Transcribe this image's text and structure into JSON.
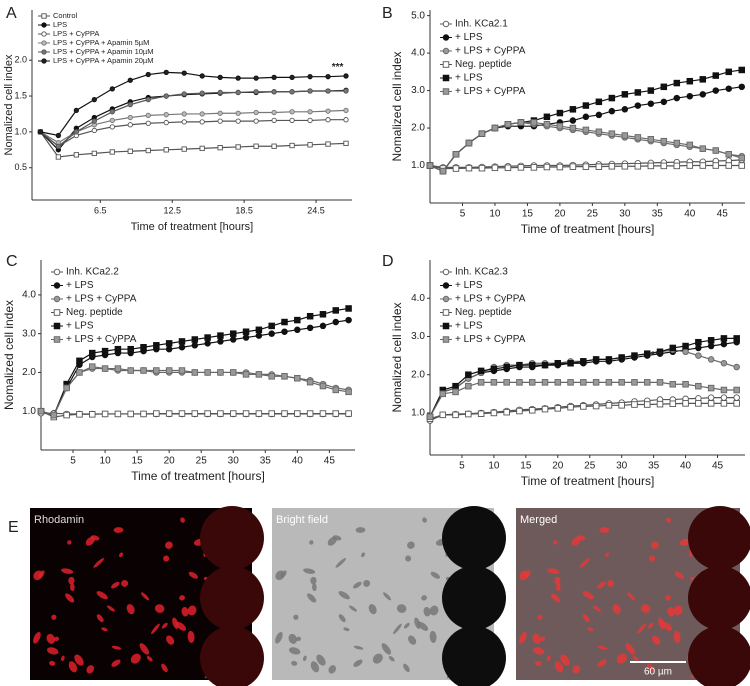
{
  "chart_data": [
    {
      "type": "line",
      "panel": "A",
      "ylabel": "Nomalized cell index",
      "xlabel": "Time of treatment [hours]",
      "x": [
        1.5,
        3,
        4.5,
        6,
        7.5,
        9,
        10.5,
        12,
        13.5,
        15,
        16.5,
        18,
        19.5,
        21,
        22.5,
        24,
        25.5,
        27
      ],
      "xlim": [
        0.8,
        27.5
      ],
      "xticks": [
        6.5,
        12.5,
        18.5,
        24.5
      ],
      "ylim": [
        0.05,
        2.7
      ],
      "yticks": [
        0.5,
        {
          "value": 1,
          "label": "1.0"
        },
        1.5,
        {
          "value": 2,
          "label": "2.0"
        }
      ],
      "series": [
        {
          "name": "Control",
          "color": "#555555",
          "fill": "#ffffff",
          "marker": "square",
          "values": [
            1.0,
            0.65,
            0.68,
            0.7,
            0.72,
            0.73,
            0.74,
            0.75,
            0.76,
            0.77,
            0.78,
            0.79,
            0.8,
            0.8,
            0.81,
            0.82,
            0.83,
            0.84
          ]
        },
        {
          "name": "LPS",
          "color": "#111111",
          "fill": "#111111",
          "marker": "circle",
          "values": [
            1.0,
            0.75,
            1.05,
            1.2,
            1.32,
            1.42,
            1.48,
            1.5,
            1.52,
            1.53,
            1.54,
            1.55,
            1.55,
            1.56,
            1.56,
            1.57,
            1.57,
            1.58
          ]
        },
        {
          "name": "LPS + CyPPA",
          "color": "#555555",
          "fill": "#ffffff",
          "marker": "circle",
          "values": [
            1.0,
            0.8,
            0.95,
            1.02,
            1.07,
            1.1,
            1.12,
            1.13,
            1.14,
            1.14,
            1.15,
            1.15,
            1.15,
            1.16,
            1.16,
            1.16,
            1.17,
            1.17
          ]
        },
        {
          "name": "LPS + CyPPA + Apamin 5µM",
          "color": "#777777",
          "fill": "#bbbbbb",
          "marker": "circle",
          "values": [
            1.0,
            0.85,
            1.0,
            1.1,
            1.16,
            1.2,
            1.23,
            1.24,
            1.25,
            1.25,
            1.26,
            1.26,
            1.27,
            1.27,
            1.28,
            1.28,
            1.29,
            1.3
          ]
        },
        {
          "name": "LPS + CyPPA + Apamin 10µM",
          "color": "#555555",
          "fill": "#777777",
          "marker": "circle",
          "values": [
            1.0,
            0.8,
            1.0,
            1.15,
            1.28,
            1.38,
            1.45,
            1.5,
            1.53,
            1.54,
            1.55,
            1.55,
            1.56,
            1.56,
            1.56,
            1.57,
            1.57,
            1.57
          ]
        },
        {
          "name": "LPS + CyPPA + Apamin 20µM",
          "color": "#111111",
          "fill": "#222222",
          "marker": "circle",
          "values": [
            1.0,
            0.95,
            1.3,
            1.45,
            1.6,
            1.72,
            1.8,
            1.83,
            1.82,
            1.78,
            1.76,
            1.75,
            1.75,
            1.76,
            1.76,
            1.77,
            1.77,
            1.78
          ]
        }
      ],
      "annotations": [
        {
          "text": "***",
          "x": 26.3,
          "y": 1.9
        }
      ]
    },
    {
      "type": "line",
      "panel": "B",
      "ylabel": "Nomalized cell index",
      "xlabel": "Time of treatment [hours]",
      "x": [
        0,
        2,
        4,
        6,
        8,
        10,
        12,
        14,
        16,
        18,
        20,
        22,
        24,
        26,
        28,
        30,
        32,
        34,
        36,
        38,
        40,
        42,
        44,
        46,
        48
      ],
      "xlim": [
        0,
        48.5
      ],
      "xticks": [
        5,
        10,
        15,
        20,
        25,
        30,
        35,
        40,
        45
      ],
      "ylim": [
        0,
        5.15
      ],
      "yticks": [
        {
          "value": 1,
          "label": "1.0"
        },
        {
          "value": 2,
          "label": "2.0"
        },
        {
          "value": 3,
          "label": "3.0"
        },
        {
          "value": 4,
          "label": "4.0"
        },
        {
          "value": 5,
          "label": "5.0"
        }
      ],
      "series": [
        {
          "name": "Inh. KCa2.1",
          "color": "#555555",
          "fill": "#ffffff",
          "marker": "circle",
          "values": [
            1.0,
            0.95,
            0.95,
            0.95,
            0.96,
            0.97,
            0.98,
            0.99,
            1.0,
            1.0,
            1.0,
            1.01,
            1.02,
            1.03,
            1.04,
            1.05,
            1.06,
            1.07,
            1.08,
            1.09,
            1.1,
            1.1,
            1.12,
            1.13,
            1.15
          ]
        },
        {
          "name": "+ LPS",
          "color": "#111111",
          "fill": "#111111",
          "marker": "circle",
          "values": [
            1.0,
            0.85,
            1.3,
            1.6,
            1.85,
            2.0,
            2.05,
            2.05,
            2.05,
            2.1,
            2.15,
            2.2,
            2.3,
            2.35,
            2.45,
            2.5,
            2.6,
            2.65,
            2.7,
            2.8,
            2.85,
            2.9,
            3.0,
            3.05,
            3.1
          ]
        },
        {
          "name": "+ LPS + CyPPA",
          "color": "#666666",
          "fill": "#999999",
          "marker": "circle",
          "values": [
            1.0,
            0.85,
            1.3,
            1.6,
            1.85,
            2.0,
            2.1,
            2.15,
            2.1,
            2.05,
            2.0,
            1.95,
            1.9,
            1.85,
            1.8,
            1.75,
            1.7,
            1.65,
            1.6,
            1.55,
            1.5,
            1.45,
            1.4,
            1.3,
            1.25
          ]
        },
        {
          "name": "Neg. peptide",
          "color": "#555555",
          "fill": "#ffffff",
          "marker": "square",
          "values": [
            1.0,
            0.92,
            0.92,
            0.93,
            0.93,
            0.94,
            0.94,
            0.95,
            0.95,
            0.96,
            0.96,
            0.97,
            0.97,
            0.97,
            0.98,
            0.98,
            0.98,
            0.99,
            0.99,
            0.99,
            1.0,
            1.0,
            1.0,
            1.0,
            1.0
          ]
        },
        {
          "name": "+ LPS",
          "color": "#111111",
          "fill": "#111111",
          "marker": "square",
          "values": [
            1.0,
            0.85,
            1.3,
            1.6,
            1.85,
            2.0,
            2.1,
            2.15,
            2.2,
            2.3,
            2.4,
            2.5,
            2.6,
            2.7,
            2.8,
            2.9,
            2.95,
            3.0,
            3.1,
            3.2,
            3.25,
            3.3,
            3.4,
            3.5,
            3.55
          ]
        },
        {
          "name": "+ LPS + CyPPA",
          "color": "#666666",
          "fill": "#999999",
          "marker": "square",
          "values": [
            1.0,
            0.85,
            1.3,
            1.6,
            1.85,
            2.0,
            2.1,
            2.15,
            2.15,
            2.1,
            2.05,
            2.0,
            1.95,
            1.9,
            1.85,
            1.8,
            1.75,
            1.7,
            1.65,
            1.6,
            1.55,
            1.45,
            1.4,
            1.3,
            1.2
          ]
        }
      ]
    },
    {
      "type": "line",
      "panel": "C",
      "ylabel": "Nomalized cell index",
      "xlabel": "Time of treatment [hours]",
      "x": [
        0,
        2,
        4,
        6,
        8,
        10,
        12,
        14,
        16,
        18,
        20,
        22,
        24,
        26,
        28,
        30,
        32,
        34,
        36,
        38,
        40,
        42,
        44,
        46,
        48
      ],
      "xlim": [
        0,
        49
      ],
      "xticks": [
        5,
        10,
        15,
        20,
        25,
        30,
        35,
        40,
        45
      ],
      "ylim": [
        0,
        4.9
      ],
      "yticks": [
        {
          "value": 1,
          "label": "1.0"
        },
        {
          "value": 2,
          "label": "2.0"
        },
        {
          "value": 3,
          "label": "3.0"
        },
        {
          "value": 4,
          "label": "4.0"
        }
      ],
      "series": [
        {
          "name": "Inh. KCa2.2",
          "color": "#555555",
          "fill": "#ffffff",
          "marker": "circle",
          "values": [
            0.95,
            0.95,
            0.93,
            0.93,
            0.93,
            0.93,
            0.93,
            0.93,
            0.93,
            0.93,
            0.93,
            0.93,
            0.93,
            0.93,
            0.93,
            0.93,
            0.93,
            0.93,
            0.93,
            0.93,
            0.93,
            0.93,
            0.93,
            0.93,
            0.93
          ]
        },
        {
          "name": "+ LPS",
          "color": "#111111",
          "fill": "#111111",
          "marker": "circle",
          "values": [
            1.0,
            0.9,
            1.6,
            2.2,
            2.4,
            2.45,
            2.5,
            2.5,
            2.55,
            2.6,
            2.6,
            2.65,
            2.7,
            2.75,
            2.8,
            2.85,
            2.9,
            2.95,
            3.0,
            3.05,
            3.1,
            3.15,
            3.2,
            3.3,
            3.35
          ]
        },
        {
          "name": "+ LPS + CyPPA",
          "color": "#666666",
          "fill": "#999999",
          "marker": "circle",
          "values": [
            1.0,
            0.9,
            1.6,
            2.0,
            2.1,
            2.1,
            2.05,
            2.05,
            2.05,
            2.0,
            2.0,
            2.0,
            2.0,
            2.0,
            2.0,
            2.0,
            2.0,
            1.95,
            1.95,
            1.9,
            1.85,
            1.8,
            1.7,
            1.6,
            1.55
          ]
        },
        {
          "name": "Neg. peptide",
          "color": "#555555",
          "fill": "#ffffff",
          "marker": "square",
          "values": [
            1.0,
            0.85,
            0.9,
            0.92,
            0.92,
            0.93,
            0.93,
            0.93,
            0.93,
            0.94,
            0.94,
            0.94,
            0.94,
            0.94,
            0.94,
            0.94,
            0.94,
            0.94,
            0.94,
            0.94,
            0.94,
            0.94,
            0.94,
            0.94,
            0.94
          ]
        },
        {
          "name": "+ LPS",
          "color": "#111111",
          "fill": "#111111",
          "marker": "square",
          "values": [
            1.0,
            0.9,
            1.7,
            2.3,
            2.5,
            2.55,
            2.6,
            2.6,
            2.65,
            2.7,
            2.75,
            2.8,
            2.85,
            2.9,
            2.95,
            3.0,
            3.05,
            3.1,
            3.2,
            3.3,
            3.35,
            3.45,
            3.5,
            3.6,
            3.65
          ]
        },
        {
          "name": "+ LPS + CyPPA",
          "color": "#666666",
          "fill": "#999999",
          "marker": "square",
          "values": [
            1.0,
            0.9,
            1.6,
            2.0,
            2.15,
            2.1,
            2.1,
            2.05,
            2.05,
            2.05,
            2.05,
            2.05,
            2.0,
            2.0,
            2.0,
            2.0,
            1.95,
            1.95,
            1.9,
            1.9,
            1.85,
            1.75,
            1.65,
            1.55,
            1.5
          ]
        }
      ]
    },
    {
      "type": "line",
      "panel": "D",
      "ylabel": "Nomalized cell index",
      "xlabel": "Time of treatment [hours]",
      "x": [
        0,
        2,
        4,
        6,
        8,
        10,
        12,
        14,
        16,
        18,
        20,
        22,
        24,
        26,
        28,
        30,
        32,
        34,
        36,
        38,
        40,
        42,
        44,
        46,
        48
      ],
      "xlim": [
        0,
        49.3
      ],
      "xticks": [
        5,
        10,
        15,
        20,
        25,
        30,
        35,
        40,
        45
      ],
      "ylim": [
        -0.1,
        5.0
      ],
      "yticks": [
        {
          "value": 1,
          "label": "1.0"
        },
        {
          "value": 2,
          "label": "2.0"
        },
        {
          "value": 3,
          "label": "3.0"
        },
        {
          "value": 4,
          "label": "4.0"
        }
      ],
      "series": [
        {
          "name": "Inh. KCa2.3",
          "color": "#555555",
          "fill": "#ffffff",
          "marker": "circle",
          "values": [
            0.8,
            0.95,
            0.97,
            0.98,
            1.0,
            1.02,
            1.05,
            1.08,
            1.1,
            1.12,
            1.15,
            1.18,
            1.2,
            1.22,
            1.25,
            1.27,
            1.3,
            1.32,
            1.35,
            1.35,
            1.37,
            1.38,
            1.4,
            1.4,
            1.4
          ]
        },
        {
          "name": "+ LPS",
          "color": "#111111",
          "fill": "#111111",
          "marker": "circle",
          "values": [
            0.9,
            1.55,
            1.65,
            1.9,
            2.05,
            2.1,
            2.15,
            2.2,
            2.2,
            2.25,
            2.25,
            2.3,
            2.3,
            2.35,
            2.35,
            2.4,
            2.45,
            2.5,
            2.55,
            2.6,
            2.65,
            2.7,
            2.75,
            2.8,
            2.85
          ]
        },
        {
          "name": "+ LPS + CyPPA",
          "color": "#666666",
          "fill": "#999999",
          "marker": "circle",
          "values": [
            0.9,
            1.55,
            1.65,
            1.9,
            2.05,
            2.2,
            2.25,
            2.25,
            2.3,
            2.3,
            2.3,
            2.35,
            2.35,
            2.4,
            2.4,
            2.45,
            2.5,
            2.55,
            2.6,
            2.65,
            2.6,
            2.5,
            2.4,
            2.3,
            2.2
          ]
        },
        {
          "name": "Neg. peptide",
          "color": "#555555",
          "fill": "#ffffff",
          "marker": "square",
          "values": [
            0.85,
            0.95,
            0.95,
            0.97,
            0.98,
            1.0,
            1.02,
            1.05,
            1.07,
            1.1,
            1.12,
            1.15,
            1.17,
            1.18,
            1.2,
            1.2,
            1.22,
            1.22,
            1.23,
            1.24,
            1.25,
            1.25,
            1.25,
            1.25,
            1.25
          ]
        },
        {
          "name": "+ LPS",
          "color": "#111111",
          "fill": "#111111",
          "marker": "square",
          "values": [
            0.9,
            1.6,
            1.7,
            2.0,
            2.1,
            2.15,
            2.2,
            2.25,
            2.25,
            2.25,
            2.3,
            2.3,
            2.35,
            2.4,
            2.4,
            2.45,
            2.5,
            2.55,
            2.6,
            2.7,
            2.75,
            2.85,
            2.9,
            2.95,
            2.95
          ]
        },
        {
          "name": "+ LPS + CyPPA",
          "color": "#666666",
          "fill": "#999999",
          "marker": "square",
          "values": [
            0.9,
            1.5,
            1.55,
            1.7,
            1.8,
            1.8,
            1.8,
            1.8,
            1.8,
            1.8,
            1.8,
            1.8,
            1.8,
            1.8,
            1.8,
            1.8,
            1.8,
            1.8,
            1.8,
            1.75,
            1.75,
            1.7,
            1.65,
            1.6,
            1.6
          ]
        }
      ],
      "annotations": [
        {
          "text": "***",
          "x": 35.5,
          "y": 2.5
        }
      ]
    }
  ],
  "image_panel": {
    "panel": "E",
    "images": [
      "Rhodamin",
      "Bright field",
      "Merged"
    ],
    "scale_bar": "60 µm"
  }
}
